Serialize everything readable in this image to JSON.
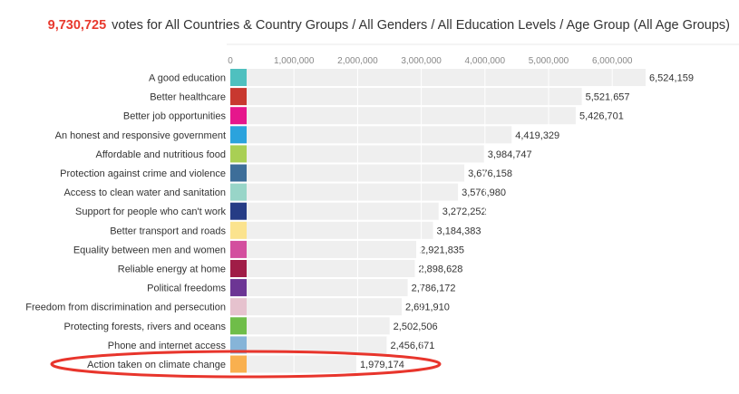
{
  "header": {
    "total_votes": "9,730,725",
    "description": "votes for All Countries & Country Groups / All Genders / All Education Levels / Age Group (All Age Groups)"
  },
  "chart_data": {
    "type": "bar",
    "orientation": "horizontal",
    "title": "",
    "xlabel": "",
    "ylabel": "",
    "xlim": [
      0,
      6524159
    ],
    "x_ticks": [
      0,
      1000000,
      2000000,
      3000000,
      4000000,
      5000000,
      6000000
    ],
    "x_tick_labels": [
      "0",
      "1,000,000",
      "2,000,000",
      "3,000,000",
      "4,000,000",
      "5,000,000",
      "6,000,000"
    ],
    "grid": true,
    "categories": [
      "A good education",
      "Better healthcare",
      "Better job opportunities",
      "An honest and responsive government",
      "Affordable and nutritious food",
      "Protection against crime and violence",
      "Access to clean water and sanitation",
      "Support for people who can't work",
      "Better transport and roads",
      "Equality between men and women",
      "Reliable energy at home",
      "Political freedoms",
      "Freedom from discrimination and persecution",
      "Protecting forests, rivers and oceans",
      "Phone and internet access",
      "Action taken on climate change"
    ],
    "values": [
      6524159,
      5521657,
      5426701,
      4419329,
      3984747,
      3676158,
      3576980,
      3272252,
      3184383,
      2921835,
      2898628,
      2786172,
      2691910,
      2502506,
      2456671,
      1979174
    ],
    "value_labels": [
      "6,524,159",
      "5,521,657",
      "5,426,701",
      "4,419,329",
      "3,984,747",
      "3,676,158",
      "3,576,980",
      "3,272,252",
      "3,184,383",
      "2,921,835",
      "2,898,628",
      "2,786,172",
      "2,691,910",
      "2,502,506",
      "2,456,671",
      "1,979,174"
    ],
    "swatch_colors": [
      "#4fc0bf",
      "#c8382f",
      "#e6168c",
      "#2ba3dd",
      "#a9cf54",
      "#3d6e99",
      "#98d5c8",
      "#263c85",
      "#fbe38e",
      "#d34e9e",
      "#a01d47",
      "#6c3594",
      "#e6c2ce",
      "#6fbd49",
      "#86b4d8",
      "#f9b04f"
    ],
    "bar_color": "#efefef",
    "highlight": {
      "category": "Action taken on climate change",
      "color": "#e8352c"
    }
  }
}
